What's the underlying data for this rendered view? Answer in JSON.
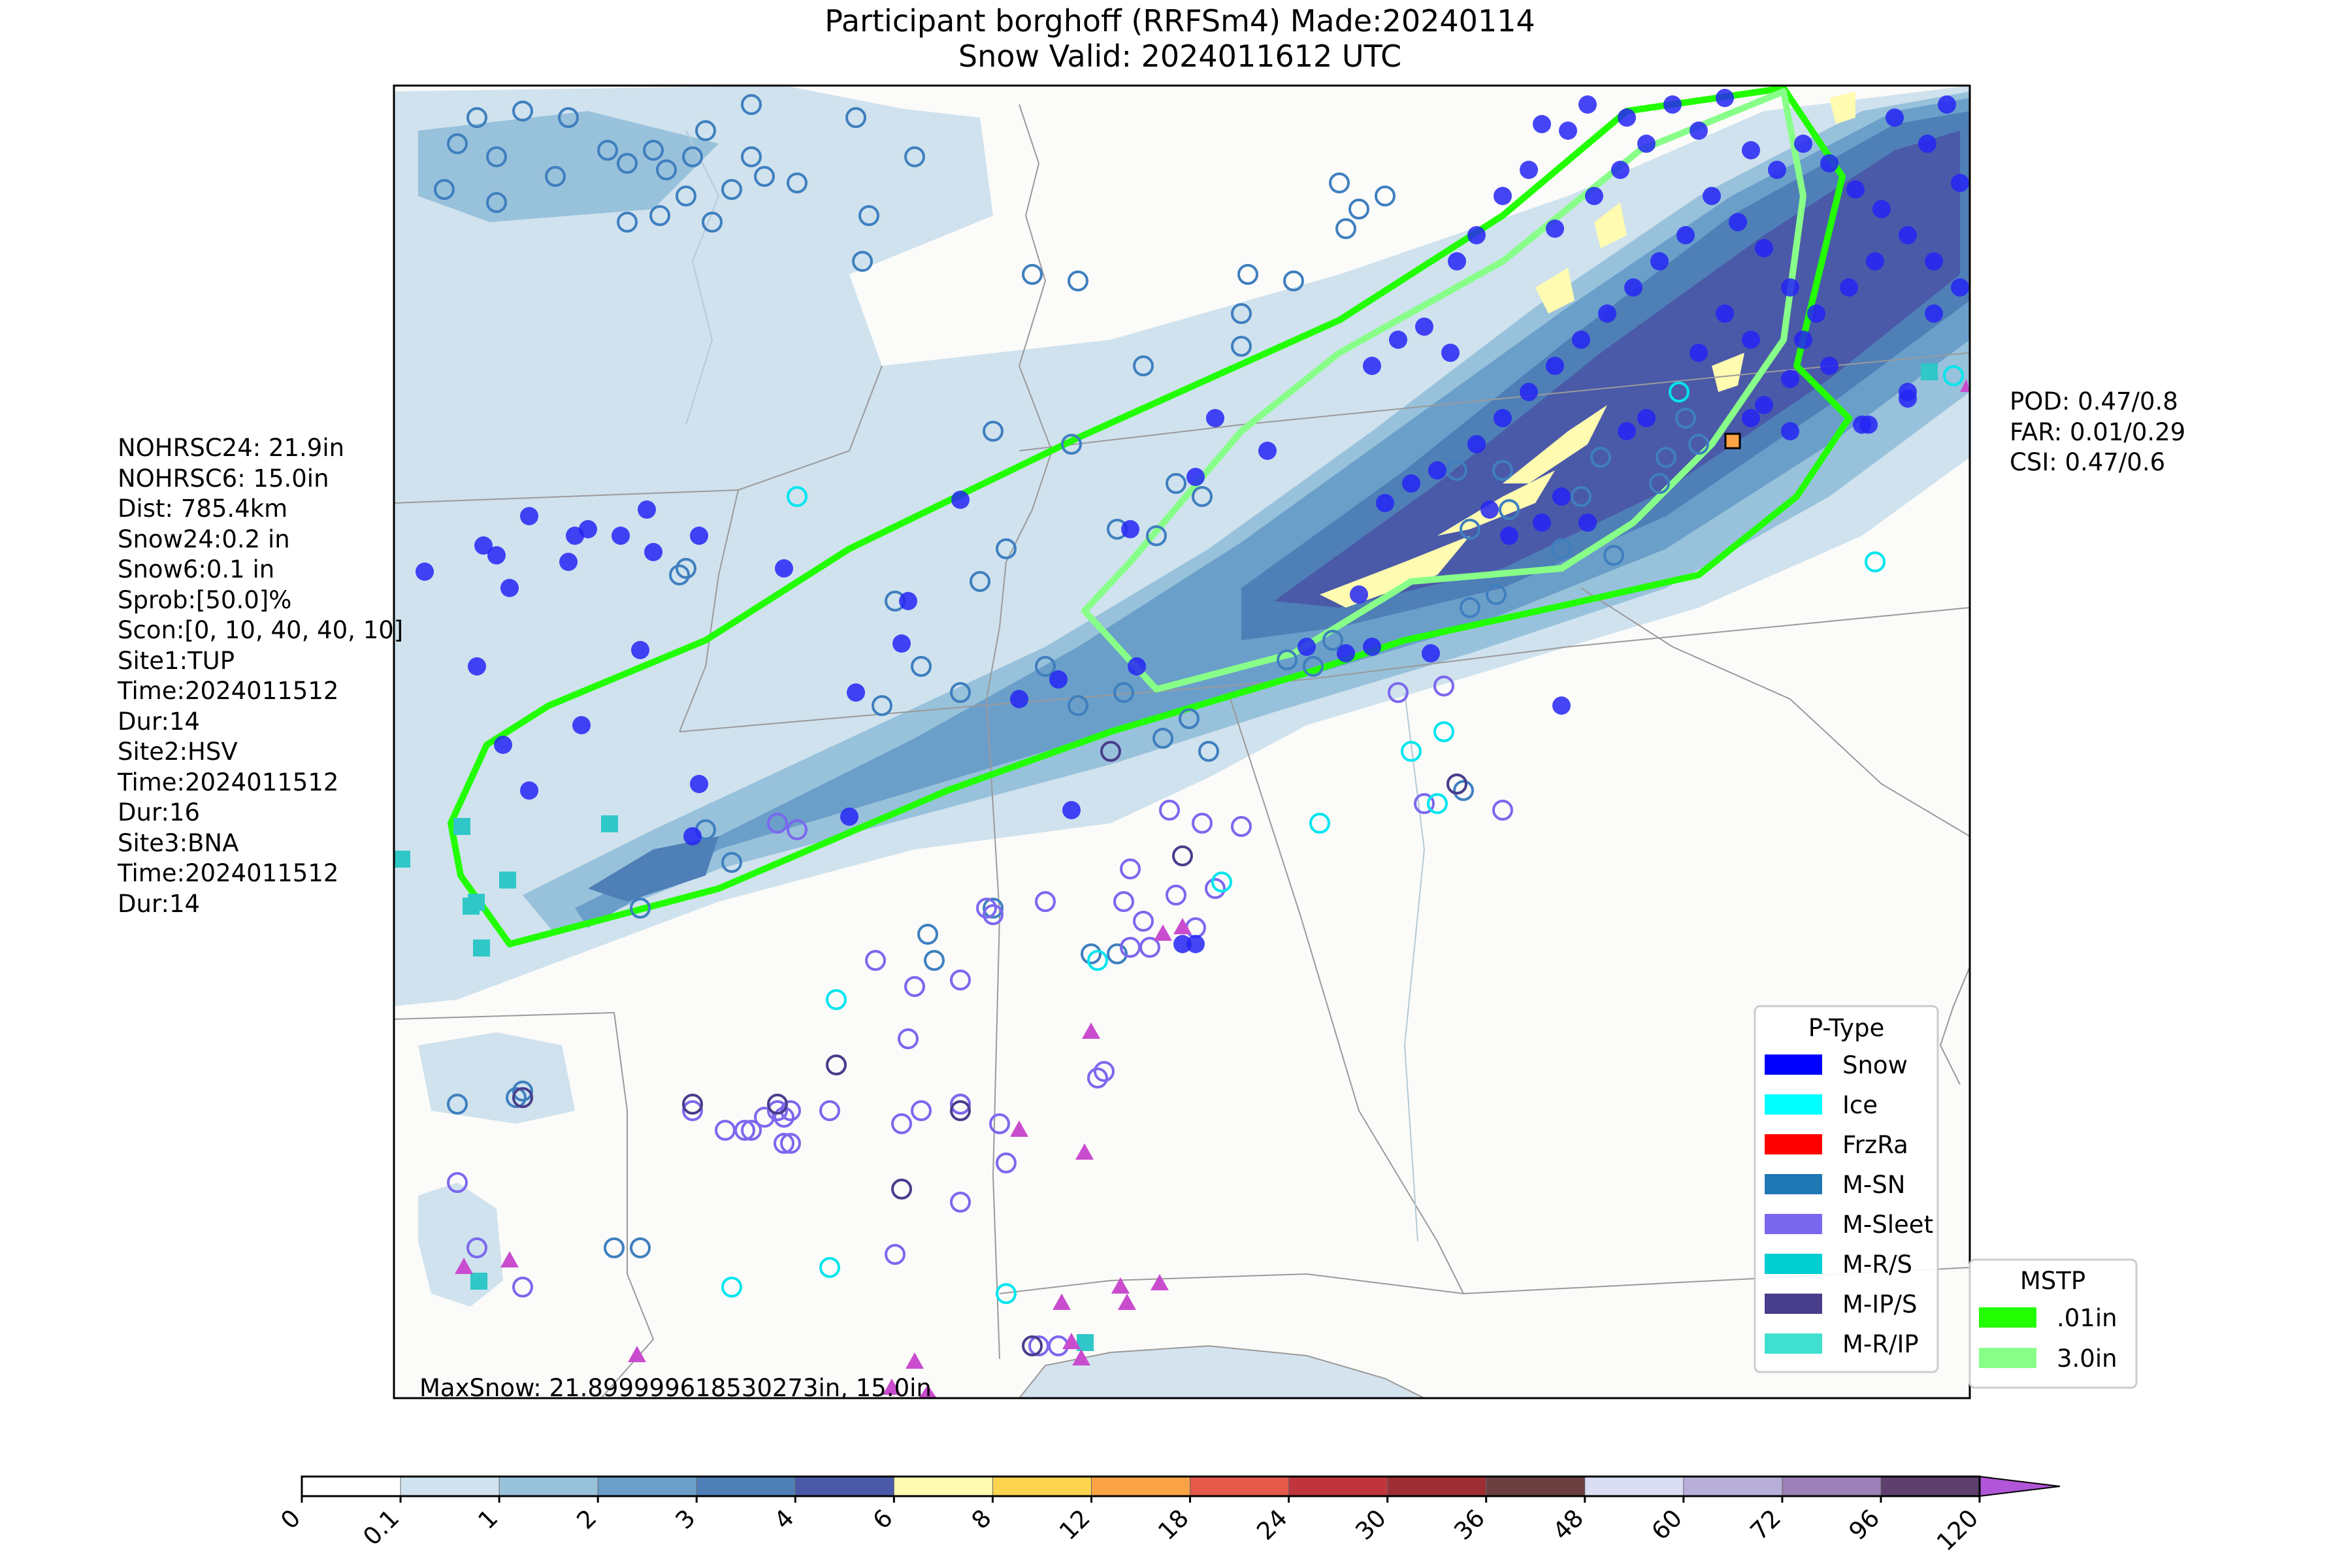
{
  "title": {
    "line1": "Participant borghoff (RRFSm4) Made:20240114",
    "line2": "Snow Valid: 2024011612 UTC"
  },
  "left_info": [
    "NOHRSC24: 21.9in",
    "NOHRSC6: 15.0in",
    "Dist: 785.4km",
    "Snow24:0.2 in",
    "Snow6:0.1 in",
    "Sprob:[50.0]%",
    "Scon:[0, 10, 40, 40, 10]",
    "Site1:TUP",
    "Time:2024011512",
    "Dur:14",
    "Site2:HSV",
    "Time:2024011512",
    "Dur:16",
    "Site3:BNA",
    "Time:2024011512",
    "Dur:14"
  ],
  "right_info": [
    "POD: 0.47/0.8",
    "FAR: 0.01/0.29",
    "CSI: 0.47/0.6"
  ],
  "map": {
    "max_snow_label": "MaxSnow: 21.899999618530273in, 15.0in"
  },
  "ptype_legend": {
    "title": "P-Type",
    "items": [
      {
        "label": "Snow",
        "color": "#0000ff"
      },
      {
        "label": "Ice",
        "color": "#00ffff"
      },
      {
        "label": "FrzRa",
        "color": "#ff0000"
      },
      {
        "label": "M-SN",
        "color": "#1f77b4"
      },
      {
        "label": "M-Sleet",
        "color": "#7b68ee"
      },
      {
        "label": "M-R/S",
        "color": "#00ced1"
      },
      {
        "label": "M-IP/S",
        "color": "#483d8b"
      },
      {
        "label": "M-R/IP",
        "color": "#40e0d0"
      }
    ]
  },
  "mstp_legend": {
    "title": "MSTP",
    "items": [
      {
        "label": ".01in",
        "color": "#22ff00"
      },
      {
        "label": "3.0in",
        "color": "#88ff88"
      }
    ]
  },
  "colorbar": {
    "ticks": [
      "0",
      "0.1",
      "1",
      "2",
      "3",
      "4",
      "6",
      "8",
      "12",
      "18",
      "24",
      "30",
      "36",
      "48",
      "60",
      "72",
      "96",
      "120"
    ],
    "colors": [
      "#ffffff",
      "#cfe2ee",
      "#98c1db",
      "#6a9fc9",
      "#4f7fb7",
      "#4a5aa8",
      "#fffbb0",
      "#fdd44e",
      "#fca345",
      "#e6584a",
      "#c0353b",
      "#9d2f34",
      "#6b3f40",
      "#d9dcf3",
      "#b7afda",
      "#9b81b7",
      "#5e3f6e"
    ],
    "extend_color": "#b056d6"
  }
}
